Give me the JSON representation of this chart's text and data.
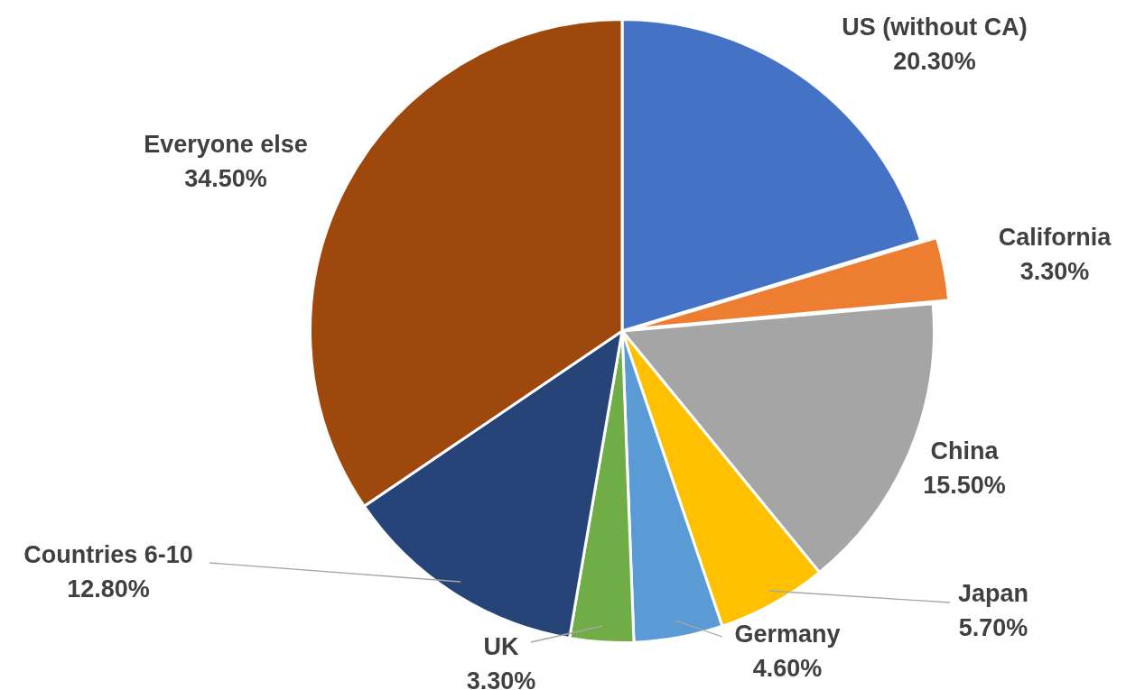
{
  "chart_data": {
    "type": "pie",
    "categories": [
      "US (without CA)",
      "California",
      "China",
      "Japan",
      "Germany",
      "UK",
      "Countries 6-10",
      "Everyone else"
    ],
    "values": [
      20.3,
      3.3,
      15.5,
      5.7,
      4.6,
      3.3,
      12.8,
      34.5
    ],
    "value_labels": [
      "20.30%",
      "3.30%",
      "15.50%",
      "5.70%",
      "4.60%",
      "3.30%",
      "12.80%",
      "34.50%"
    ],
    "colors": [
      "#4472c4",
      "#ed7d31",
      "#a5a5a5",
      "#ffc000",
      "#5b9bd5",
      "#70ad47",
      "#264478",
      "#9e480e"
    ],
    "legend": false
  }
}
